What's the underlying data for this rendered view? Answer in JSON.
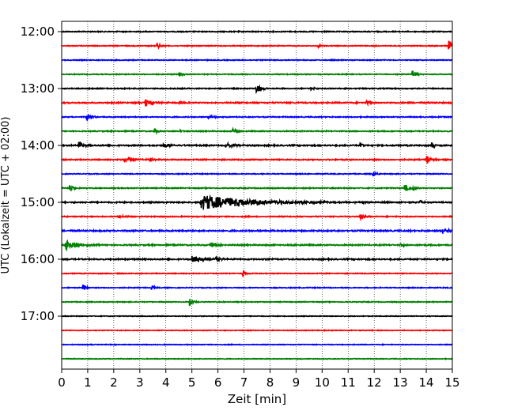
{
  "chart_data": {
    "type": "line",
    "xlabel": "Zeit  [min]",
    "ylabel": "UTC (Lokalzeit = UTC + 02:00)",
    "xlim": [
      0,
      15
    ],
    "x_ticks": [
      "0",
      "1",
      "2",
      "3",
      "4",
      "5",
      "6",
      "7",
      "8",
      "9",
      "10",
      "11",
      "12",
      "13",
      "14",
      "15"
    ],
    "y_ticks": [
      {
        "label": "12:00",
        "trace_index": 0
      },
      {
        "label": "13:00",
        "trace_index": 4
      },
      {
        "label": "14:00",
        "trace_index": 8
      },
      {
        "label": "15:00",
        "trace_index": 12
      },
      {
        "label": "16:00",
        "trace_index": 16
      },
      {
        "label": "17:00",
        "trace_index": 20
      }
    ],
    "trace_interval_min": 15,
    "grid": "vertical dotted",
    "colors": [
      "#000000",
      "#ff0000",
      "#0000ff",
      "#008000"
    ],
    "traces": [
      {
        "start": "12:00",
        "noise": 0.35,
        "events": []
      },
      {
        "start": "12:15",
        "noise": 0.3,
        "events": [
          {
            "t": 3.65,
            "amp": 5,
            "dur": 0.12
          },
          {
            "t": 9.85,
            "amp": 3,
            "dur": 0.08
          },
          {
            "t": 14.85,
            "amp": 8,
            "dur": 0.12
          }
        ]
      },
      {
        "start": "12:30",
        "noise": 0.3,
        "events": []
      },
      {
        "start": "12:45",
        "noise": 0.3,
        "events": [
          {
            "t": 4.5,
            "amp": 3,
            "dur": 0.1
          },
          {
            "t": 13.45,
            "amp": 7,
            "dur": 0.15
          }
        ]
      },
      {
        "start": "13:00",
        "noise": 0.35,
        "events": [
          {
            "t": 7.45,
            "amp": 7,
            "dur": 0.18
          },
          {
            "t": 9.55,
            "amp": 3,
            "dur": 0.1
          }
        ]
      },
      {
        "start": "13:15",
        "noise": 0.45,
        "events": [
          {
            "t": 3.2,
            "amp": 5,
            "dur": 0.3
          },
          {
            "t": 4.5,
            "amp": 2,
            "dur": 0.4
          },
          {
            "t": 11.7,
            "amp": 6,
            "dur": 0.1
          }
        ]
      },
      {
        "start": "13:30",
        "noise": 0.35,
        "events": [
          {
            "t": 0.95,
            "amp": 6,
            "dur": 0.15
          },
          {
            "t": 5.6,
            "amp": 2,
            "dur": 0.3
          }
        ]
      },
      {
        "start": "13:45",
        "noise": 0.35,
        "events": [
          {
            "t": 3.55,
            "amp": 4,
            "dur": 0.1
          },
          {
            "t": 4.55,
            "amp": 3,
            "dur": 0.1
          },
          {
            "t": 6.55,
            "amp": 4,
            "dur": 0.15
          }
        ]
      },
      {
        "start": "14:00",
        "noise": 0.45,
        "events": [
          {
            "t": 0.65,
            "amp": 7,
            "dur": 0.12
          },
          {
            "t": 3.9,
            "amp": 3,
            "dur": 0.35
          },
          {
            "t": 6.3,
            "amp": 3,
            "dur": 0.3
          },
          {
            "t": 11.45,
            "amp": 5,
            "dur": 0.1
          },
          {
            "t": 14.2,
            "amp": 4,
            "dur": 0.1
          }
        ]
      },
      {
        "start": "14:15",
        "noise": 0.4,
        "events": [
          {
            "t": 2.4,
            "amp": 3,
            "dur": 0.4
          },
          {
            "t": 3.4,
            "amp": 4,
            "dur": 0.15
          },
          {
            "t": 14.0,
            "amp": 7,
            "dur": 0.12
          }
        ]
      },
      {
        "start": "14:30",
        "noise": 0.3,
        "events": [
          {
            "t": 11.95,
            "amp": 4,
            "dur": 0.1
          }
        ]
      },
      {
        "start": "14:45",
        "noise": 0.35,
        "events": [
          {
            "t": 0.3,
            "amp": 5,
            "dur": 0.12
          },
          {
            "t": 13.15,
            "amp": 6,
            "dur": 0.15
          },
          {
            "t": 13.45,
            "amp": 5,
            "dur": 0.12
          }
        ]
      },
      {
        "start": "15:00",
        "noise": 0.45,
        "events": [
          {
            "t": 5.35,
            "amp": 10,
            "dur": 1.8
          },
          {
            "t": 13.75,
            "amp": 4,
            "dur": 0.1
          }
        ]
      },
      {
        "start": "15:15",
        "noise": 0.35,
        "events": [
          {
            "t": 11.45,
            "amp": 5,
            "dur": 0.12
          },
          {
            "t": 2.2,
            "amp": 2,
            "dur": 0.2
          }
        ]
      },
      {
        "start": "15:30",
        "noise": 0.5,
        "events": [
          {
            "t": 14.6,
            "amp": 4,
            "dur": 0.4
          }
        ]
      },
      {
        "start": "15:45",
        "noise": 0.45,
        "events": [
          {
            "t": 0.15,
            "amp": 9,
            "dur": 0.35
          },
          {
            "t": 5.7,
            "amp": 4,
            "dur": 0.2
          },
          {
            "t": 13.0,
            "amp": 3,
            "dur": 0.1
          }
        ]
      },
      {
        "start": "16:00",
        "noise": 0.45,
        "events": [
          {
            "t": 5.0,
            "amp": 4,
            "dur": 0.5
          },
          {
            "t": 5.9,
            "amp": 4,
            "dur": 0.2
          }
        ]
      },
      {
        "start": "16:15",
        "noise": 0.3,
        "events": [
          {
            "t": 6.95,
            "amp": 5,
            "dur": 0.1
          }
        ]
      },
      {
        "start": "16:30",
        "noise": 0.3,
        "events": [
          {
            "t": 0.8,
            "amp": 6,
            "dur": 0.12
          },
          {
            "t": 3.45,
            "amp": 3,
            "dur": 0.1
          }
        ]
      },
      {
        "start": "16:45",
        "noise": 0.3,
        "events": [
          {
            "t": 4.9,
            "amp": 6,
            "dur": 0.12
          }
        ]
      },
      {
        "start": "17:00",
        "noise": 0.25,
        "events": []
      },
      {
        "start": "17:15",
        "noise": 0.25,
        "events": []
      },
      {
        "start": "17:30",
        "noise": 0.25,
        "events": []
      },
      {
        "start": "17:45",
        "noise": 0.25,
        "events": []
      }
    ]
  }
}
